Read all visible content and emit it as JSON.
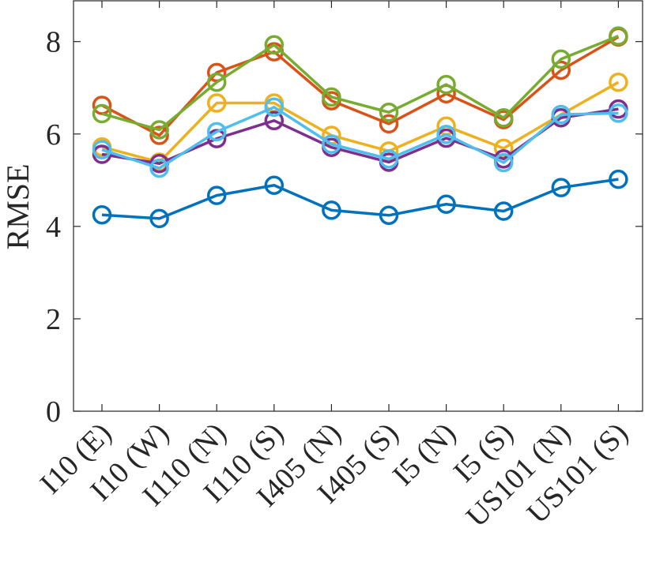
{
  "chart_data": {
    "type": "line",
    "title": "",
    "xlabel": "",
    "ylabel": "RMSE",
    "categories": [
      "I10 (E)",
      "I10 (W)",
      "I110 (N)",
      "I110 (S)",
      "I405 (N)",
      "I405 (S)",
      "I5 (N)",
      "I5 (S)",
      "US101 (N)",
      "US101 (S)"
    ],
    "ylim": [
      0,
      8.9
    ],
    "yticks": [
      "0",
      "2",
      "4",
      "6",
      "8"
    ],
    "grid": false,
    "legend": "none",
    "marker": "circle",
    "series": [
      {
        "color": "#0072BD",
        "values": [
          4.25,
          4.17,
          4.67,
          4.89,
          4.35,
          4.24,
          4.48,
          4.33,
          4.84,
          5.02
        ]
      },
      {
        "color": "#D95319",
        "values": [
          6.62,
          5.97,
          7.33,
          7.78,
          6.72,
          6.22,
          6.87,
          6.31,
          7.38,
          8.1
        ]
      },
      {
        "color": "#EDB120",
        "values": [
          5.72,
          5.39,
          6.67,
          6.67,
          5.97,
          5.63,
          6.17,
          5.69,
          6.42,
          7.12
        ]
      },
      {
        "color": "#7E2F8E",
        "values": [
          5.56,
          5.36,
          5.9,
          6.29,
          5.71,
          5.39,
          5.91,
          5.46,
          6.35,
          6.54
        ]
      },
      {
        "color": "#77AC30",
        "values": [
          6.44,
          6.09,
          7.12,
          7.93,
          6.8,
          6.47,
          7.07,
          6.35,
          7.62,
          8.12
        ]
      },
      {
        "color": "#4DBEEE",
        "values": [
          5.66,
          5.26,
          6.05,
          6.58,
          5.78,
          5.46,
          5.99,
          5.38,
          6.42,
          6.45
        ]
      }
    ]
  }
}
